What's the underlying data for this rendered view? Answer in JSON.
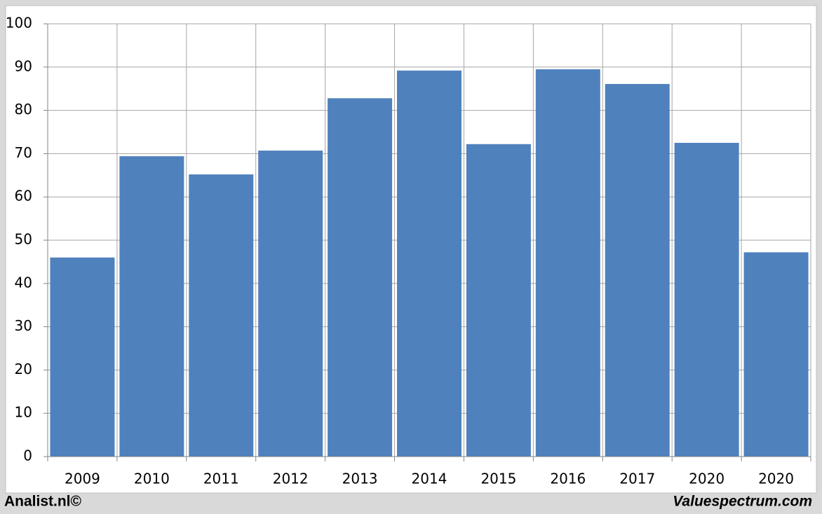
{
  "chart_data": {
    "type": "bar",
    "categories": [
      "2009",
      "2010",
      "2011",
      "2012",
      "2013",
      "2014",
      "2015",
      "2016",
      "2017",
      "2020",
      "2020"
    ],
    "values": [
      46,
      69.4,
      65.2,
      70.7,
      82.8,
      89.2,
      72.2,
      89.5,
      86.1,
      72.5,
      47.2
    ],
    "color": "#4f81bd",
    "ylim": [
      0,
      100
    ],
    "yticks": [
      0,
      10,
      20,
      30,
      40,
      50,
      60,
      70,
      80,
      90,
      100
    ],
    "grid": true,
    "annotations": [
      "Analist.nl©",
      "Valuespectrum.com"
    ]
  }
}
